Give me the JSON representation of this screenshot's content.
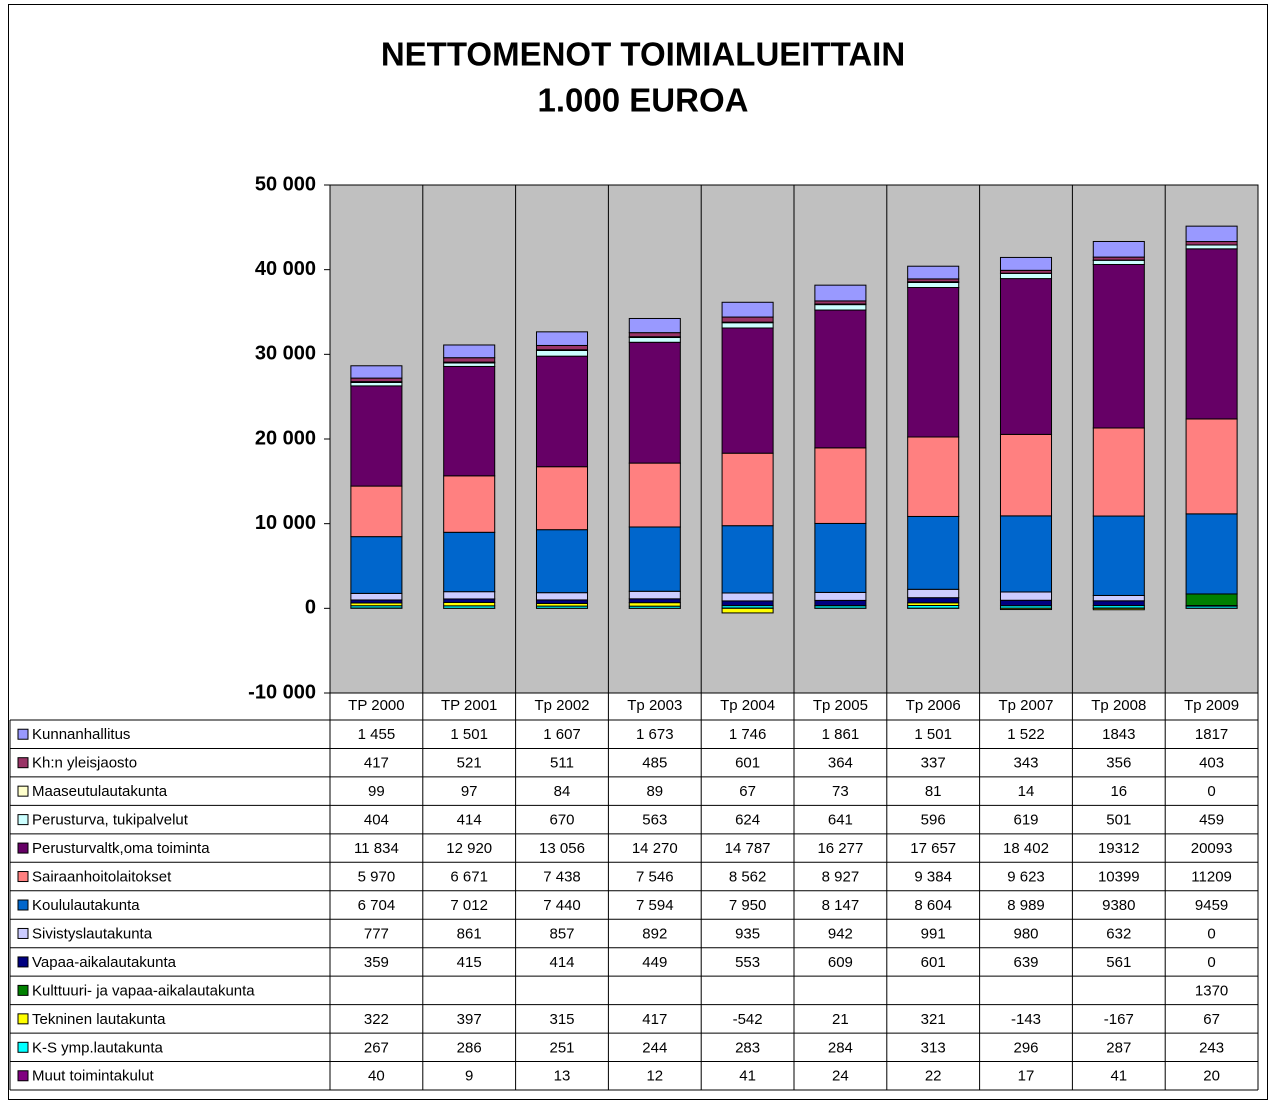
{
  "chart_data": {
    "type": "stacked_bar",
    "title": "NETTOMENOT TOIMIALUEITTAIN",
    "subtitle": "1.000 EUROA",
    "categories": [
      "TP 2000",
      "TP 2001",
      "Tp 2002",
      "Tp 2003",
      "Tp 2004",
      "Tp 2005",
      "Tp 2006",
      "Tp 2007",
      "Tp 2008",
      "Tp 2009"
    ],
    "ylim": [
      -10000,
      50000
    ],
    "yticks": [
      {
        "value": -10000,
        "label": "-10 000"
      },
      0,
      {
        "value": 10000,
        "label": "10 000"
      },
      {
        "value": 20000,
        "label": "20 000"
      },
      {
        "value": 30000,
        "label": "30 000"
      },
      {
        "value": 40000,
        "label": "40 000"
      },
      {
        "value": 50000,
        "label": "50 000"
      }
    ],
    "grid": false,
    "series": [
      {
        "name": "Kunnanhallitus",
        "color": "#9999ff",
        "values": [
          1455,
          1501,
          1607,
          1673,
          1746,
          1861,
          1501,
          1522,
          1843,
          1817
        ],
        "value_labels": [
          "1 455",
          "1 501",
          "1 607",
          "1 673",
          "1 746",
          "1 861",
          "1 501",
          "1 522",
          "1843",
          "1817"
        ]
      },
      {
        "name": "Kh:n yleisjaosto",
        "color": "#993366",
        "values": [
          417,
          521,
          511,
          485,
          601,
          364,
          337,
          343,
          356,
          403
        ]
      },
      {
        "name": "Maaseutulautakunta",
        "color": "#ffffcc",
        "values": [
          99,
          97,
          84,
          89,
          67,
          73,
          81,
          14,
          16,
          0
        ]
      },
      {
        "name": "Perusturva, tukipalvelut",
        "color": "#ccffff",
        "values": [
          404,
          414,
          670,
          563,
          624,
          641,
          596,
          619,
          501,
          459
        ]
      },
      {
        "name": "Perusturvaltk,oma toiminta",
        "color": "#660066",
        "values": [
          11834,
          12920,
          13056,
          14270,
          14787,
          16277,
          17657,
          18402,
          19312,
          20093
        ],
        "value_labels": [
          "11 834",
          "12 920",
          "13 056",
          "14 270",
          "14 787",
          "16 277",
          "17 657",
          "18 402",
          "19312",
          "20093"
        ]
      },
      {
        "name": "Sairaanhoitolaitokset",
        "color": "#ff8080",
        "values": [
          5970,
          6671,
          7438,
          7546,
          8562,
          8927,
          9384,
          9623,
          10399,
          11209
        ],
        "value_labels": [
          "5 970",
          "6 671",
          "7 438",
          "7 546",
          "8 562",
          "8 927",
          "9 384",
          "9 623",
          "10399",
          "11209"
        ]
      },
      {
        "name": "Koululautakunta",
        "color": "#0066cc",
        "values": [
          6704,
          7012,
          7440,
          7594,
          7950,
          8147,
          8604,
          8989,
          9380,
          9459
        ],
        "value_labels": [
          "6 704",
          "7 012",
          "7 440",
          "7 594",
          "7 950",
          "8 147",
          "8 604",
          "8 989",
          "9380",
          "9459"
        ]
      },
      {
        "name": "Sivistyslautakunta",
        "color": "#ccccff",
        "values": [
          777,
          861,
          857,
          892,
          935,
          942,
          991,
          980,
          632,
          0
        ]
      },
      {
        "name": "Vapaa-aikalautakunta",
        "color": "#000080",
        "values": [
          359,
          415,
          414,
          449,
          553,
          609,
          601,
          639,
          561,
          0
        ]
      },
      {
        "name": "Kulttuuri- ja vapaa-aikalautakunta",
        "color": "#008000",
        "values": [
          null,
          null,
          null,
          null,
          null,
          null,
          null,
          null,
          null,
          1370
        ]
      },
      {
        "name": "Tekninen lautakunta",
        "color": "#ffff00",
        "values": [
          322,
          397,
          315,
          417,
          -542,
          21,
          321,
          -143,
          -167,
          67
        ]
      },
      {
        "name": "K-S ymp.lautakunta",
        "color": "#00ffff",
        "values": [
          267,
          286,
          251,
          244,
          283,
          284,
          313,
          296,
          287,
          243
        ]
      },
      {
        "name": "Muut toimintakulut",
        "color": "#800080",
        "values": [
          40,
          9,
          13,
          12,
          41,
          24,
          22,
          17,
          41,
          20
        ]
      }
    ]
  }
}
